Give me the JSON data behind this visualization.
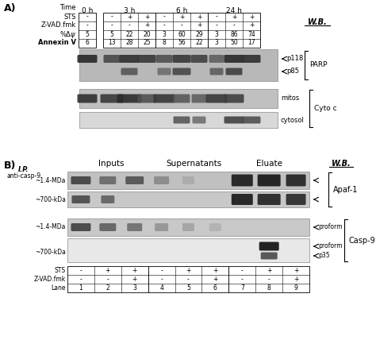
{
  "panel_A": {
    "time_labels": [
      "0 h",
      "3 h",
      "6 h",
      "24 h"
    ],
    "STS_row": [
      "-",
      "-",
      "+",
      "+",
      "-",
      "+",
      "+",
      "-",
      "+",
      "+"
    ],
    "ZVAD_row": [
      "-",
      "-",
      "-",
      "+",
      "-",
      "-",
      "+",
      "-",
      "-",
      "+"
    ],
    "deltaPsi_row": [
      "5",
      "5",
      "22",
      "20",
      "3",
      "60",
      "29",
      "3",
      "86",
      "74"
    ],
    "AnnexinV_row": [
      "6",
      "13",
      "28",
      "25",
      "8",
      "56",
      "22",
      "3",
      "50",
      "17"
    ],
    "WB_label": "W.B.",
    "PARP_labels": [
      "p118",
      "p85"
    ],
    "PARP_bracket": "PARP",
    "CytoC_labels": [
      "mitos",
      "cytosol"
    ],
    "CytoC_bracket": "Cyto c"
  },
  "panel_B": {
    "IP_label": "I.P.\nanti-casp-9",
    "section_labels": [
      "Inputs",
      "Supernatants",
      "Eluate"
    ],
    "WB_label": "W.B.",
    "size_labels_apaf": [
      "~1.4-MDa",
      "~700-kDa"
    ],
    "size_labels_casp9": [
      "~1.4-MDa",
      "~700-kDa"
    ],
    "Apaf1_label": "Apaf-1",
    "Casp9_label": "Casp-9",
    "casp9_band_labels": [
      "proform",
      "proform",
      "p35"
    ],
    "STS_bottom": [
      "-",
      "+",
      "+",
      "-",
      "+",
      "+",
      "-",
      "+",
      "+"
    ],
    "ZVAD_bottom": [
      "-",
      "-",
      "+",
      "-",
      "-",
      "+",
      "-",
      "-",
      "+"
    ],
    "Lane_bottom": [
      "1",
      "2",
      "3",
      "4",
      "5",
      "6",
      "7",
      "8",
      "9"
    ]
  },
  "bg_color": "#ffffff",
  "text_color": "#000000"
}
